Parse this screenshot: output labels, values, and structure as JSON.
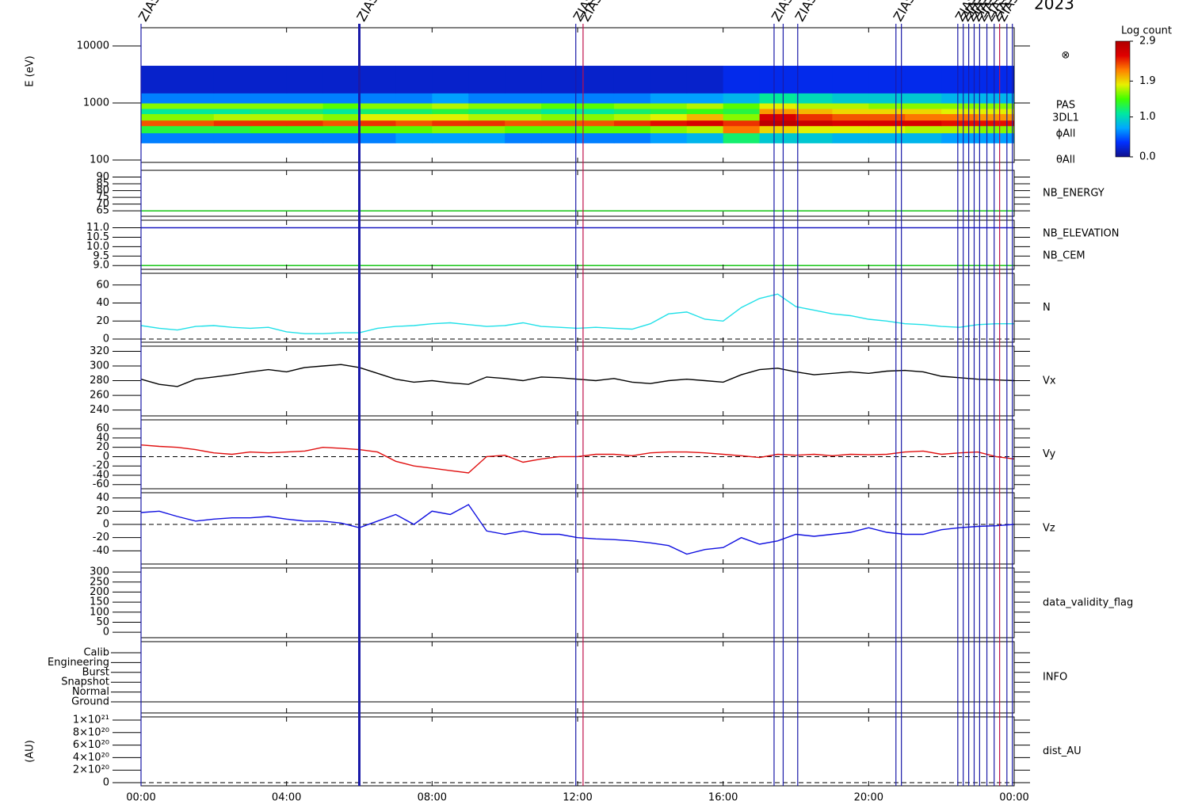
{
  "chart_data": [
    {
      "type": "heatmap",
      "ylabel": "E (eV)",
      "log": true,
      "ylim": [
        91,
        20900
      ],
      "yticks": [
        100,
        1000,
        10000
      ],
      "time_bins": [
        0,
        1,
        2,
        3,
        4,
        5,
        6,
        7,
        8,
        9,
        10,
        11,
        12,
        13,
        14,
        15,
        16,
        17,
        18,
        19,
        20,
        21,
        22,
        23,
        24
      ],
      "energy_bins": [
        200,
        300,
        400,
        500,
        650,
        800,
        1000,
        1500,
        4500
      ],
      "z": [
        [
          0.6,
          0.6,
          0.6,
          0.6,
          0.6,
          0.6,
          0.6,
          0.7,
          0.7,
          0.7,
          0.6,
          0.6,
          0.6,
          0.6,
          0.7,
          0.8,
          1.2,
          0.9,
          0.9,
          0.8,
          0.8,
          0.8,
          0.7,
          0.7
        ],
        [
          1.3,
          1.3,
          1.3,
          1.4,
          1.4,
          1.4,
          1.5,
          1.5,
          1.6,
          1.6,
          1.5,
          1.5,
          1.5,
          1.5,
          1.6,
          1.7,
          2.2,
          1.9,
          1.8,
          1.8,
          1.8,
          1.7,
          1.7,
          1.6
        ],
        [
          2.3,
          2.3,
          2.4,
          2.4,
          2.4,
          2.3,
          2.4,
          2.3,
          2.4,
          2.4,
          2.3,
          2.3,
          2.3,
          2.4,
          2.5,
          2.6,
          2.4,
          2.8,
          2.7,
          2.6,
          2.6,
          2.6,
          2.5,
          2.5
        ],
        [
          1.6,
          1.6,
          1.7,
          1.7,
          1.7,
          1.6,
          1.8,
          1.8,
          1.8,
          1.7,
          1.7,
          1.6,
          1.6,
          1.7,
          1.8,
          2.0,
          1.6,
          2.6,
          2.4,
          2.3,
          2.3,
          2.2,
          2.2,
          2.1
        ],
        [
          1.1,
          1.1,
          1.1,
          1.2,
          1.2,
          1.1,
          1.2,
          1.2,
          1.3,
          1.2,
          1.2,
          1.1,
          1.1,
          1.2,
          1.3,
          1.4,
          1.3,
          2.1,
          2.0,
          1.9,
          1.9,
          1.9,
          1.8,
          1.8
        ],
        [
          1.6,
          1.6,
          1.6,
          1.6,
          1.6,
          1.5,
          1.6,
          1.6,
          1.7,
          1.6,
          1.6,
          1.5,
          1.5,
          1.6,
          1.6,
          1.7,
          1.5,
          1.8,
          1.7,
          1.7,
          1.6,
          1.6,
          1.6,
          1.6
        ],
        [
          0.6,
          0.6,
          0.6,
          0.6,
          0.6,
          0.6,
          0.6,
          0.6,
          0.7,
          0.6,
          0.6,
          0.6,
          0.6,
          0.6,
          0.7,
          0.7,
          0.8,
          1.1,
          1.0,
          0.9,
          0.9,
          0.9,
          0.8,
          0.8
        ],
        [
          0.2,
          0.2,
          0.2,
          0.2,
          0.2,
          0.2,
          0.2,
          0.2,
          0.2,
          0.2,
          0.2,
          0.2,
          0.2,
          0.2,
          0.2,
          0.2,
          0.3,
          0.3,
          0.3,
          0.3,
          0.3,
          0.3,
          0.3,
          0.3
        ]
      ],
      "colorbar_title": "Log count",
      "clim": [
        0,
        2.9
      ],
      "cticks": [
        {
          "value": 0,
          "label": "0.0"
        },
        {
          "value": 1,
          "label": "1.0"
        },
        1.9,
        2.9
      ],
      "colorscale": [
        "#10108c",
        "#0030ff",
        "#00a8ff",
        "#00e8a0",
        "#40ff00",
        "#e8f000",
        "#ff8000",
        "#e00000",
        "#b00000"
      ],
      "labels": [
        "⊗",
        "PAS",
        "3DL1",
        "ϕAll",
        "θAll"
      ]
    },
    {
      "type": "line",
      "ylim": [
        61,
        95
      ],
      "yticks": [
        65,
        70,
        75,
        80,
        85,
        90
      ],
      "x": [
        0,
        24
      ],
      "series": [
        {
          "name": "NB_ENERGY",
          "color": "#00c000",
          "values": [
            65,
            65
          ]
        }
      ]
    },
    {
      "type": "line",
      "ylim": [
        8.8,
        11.4
      ],
      "yticks": [
        {
          "value": 9,
          "label": "9.0"
        },
        9.5,
        {
          "value": 10,
          "label": "10.0"
        },
        10.5,
        {
          "value": 11,
          "label": "11.0"
        }
      ],
      "x": [
        0,
        24
      ],
      "series": [
        {
          "name": "NB_ELEVATION",
          "color": "#00c000",
          "values": [
            9,
            9
          ]
        },
        {
          "name": "NB_CEM",
          "color": "#1818c0",
          "values": [
            11,
            11
          ]
        }
      ]
    },
    {
      "type": "line",
      "ylim": [
        -3.5,
        73
      ],
      "yticks": [
        0,
        20,
        40,
        60
      ],
      "zero_line": true,
      "x": [
        0,
        0.5,
        1,
        1.5,
        2,
        2.5,
        3,
        3.5,
        4,
        4.5,
        5,
        5.5,
        6,
        6.5,
        7,
        7.5,
        8,
        8.5,
        9,
        9.5,
        10,
        10.5,
        11,
        11.5,
        12,
        12.5,
        13,
        13.5,
        14,
        14.5,
        15,
        15.5,
        16,
        16.5,
        17,
        17.5,
        18,
        18.5,
        19,
        19.5,
        20,
        20.5,
        21,
        21.5,
        22,
        22.5,
        23,
        23.5,
        24
      ],
      "series": [
        {
          "name": "N",
          "color": "#20e0e8",
          "values": [
            15,
            12,
            10,
            14,
            15,
            13,
            12,
            13,
            8,
            6,
            6,
            7,
            7,
            12,
            14,
            15,
            17,
            18,
            16,
            14,
            15,
            18,
            14,
            13,
            12,
            13,
            12,
            11,
            17,
            28,
            30,
            22,
            20,
            35,
            45,
            50,
            36,
            32,
            28,
            26,
            22,
            20,
            17,
            16,
            14,
            13,
            16,
            17,
            17
          ]
        }
      ]
    },
    {
      "type": "line",
      "ylim": [
        232,
        327
      ],
      "yticks": [
        240,
        260,
        280,
        300,
        320
      ],
      "x": [
        0,
        0.5,
        1,
        1.5,
        2,
        2.5,
        3,
        3.5,
        4,
        4.5,
        5,
        5.5,
        6,
        6.5,
        7,
        7.5,
        8,
        8.5,
        9,
        9.5,
        10,
        10.5,
        11,
        11.5,
        12,
        12.5,
        13,
        13.5,
        14,
        14.5,
        15,
        15.5,
        16,
        16.5,
        17,
        17.5,
        18,
        18.5,
        19,
        19.5,
        20,
        20.5,
        21,
        21.5,
        22,
        22.5,
        23,
        23.5,
        24
      ],
      "series": [
        {
          "name": "Vx",
          "color": "#000000",
          "values": [
            282,
            275,
            272,
            282,
            285,
            288,
            292,
            295,
            292,
            298,
            300,
            302,
            298,
            290,
            282,
            278,
            280,
            277,
            275,
            285,
            283,
            280,
            285,
            284,
            282,
            280,
            283,
            278,
            276,
            280,
            282,
            280,
            278,
            288,
            295,
            297,
            292,
            288,
            290,
            292,
            290,
            293,
            294,
            292,
            286,
            284,
            282,
            281,
            280
          ]
        }
      ]
    },
    {
      "type": "line",
      "ylim": [
        -69,
        79
      ],
      "yticks": [
        -60,
        -40,
        -20,
        0,
        20,
        40,
        60
      ],
      "zero_line": true,
      "x": [
        0,
        0.5,
        1,
        1.5,
        2,
        2.5,
        3,
        3.5,
        4,
        4.5,
        5,
        5.5,
        6,
        6.5,
        7,
        7.5,
        8,
        8.5,
        9,
        9.5,
        10,
        10.5,
        11,
        11.5,
        12,
        12.5,
        13,
        13.5,
        14,
        14.5,
        15,
        15.5,
        16,
        16.5,
        17,
        17.5,
        18,
        18.5,
        19,
        19.5,
        20,
        20.5,
        21,
        21.5,
        22,
        22.5,
        23,
        23.5,
        24
      ],
      "series": [
        {
          "name": "Vy",
          "color": "#e01010",
          "values": [
            25,
            22,
            20,
            15,
            8,
            5,
            10,
            8,
            10,
            12,
            20,
            18,
            15,
            10,
            -10,
            -20,
            -25,
            -30,
            -35,
            0,
            3,
            -12,
            -5,
            0,
            0,
            5,
            5,
            2,
            8,
            10,
            10,
            8,
            5,
            2,
            -2,
            5,
            3,
            5,
            2,
            5,
            4,
            5,
            10,
            12,
            5,
            8,
            10,
            0,
            -5
          ]
        }
      ]
    },
    {
      "type": "line",
      "ylim": [
        -60,
        48
      ],
      "yticks": [
        -40,
        -20,
        0,
        20,
        40
      ],
      "zero_line": true,
      "x": [
        0,
        0.5,
        1,
        1.5,
        2,
        2.5,
        3,
        3.5,
        4,
        4.5,
        5,
        5.5,
        6,
        6.5,
        7,
        7.5,
        8,
        8.5,
        9,
        9.5,
        10,
        10.5,
        11,
        11.5,
        12,
        12.5,
        13,
        13.5,
        14,
        14.5,
        15,
        15.5,
        16,
        16.5,
        17,
        17.5,
        18,
        18.5,
        19,
        19.5,
        20,
        20.5,
        21,
        21.5,
        22,
        22.5,
        23,
        23.5,
        24
      ],
      "series": [
        {
          "name": "Vz",
          "color": "#1010e0",
          "values": [
            18,
            20,
            12,
            5,
            8,
            10,
            10,
            12,
            8,
            5,
            5,
            2,
            -5,
            5,
            15,
            0,
            20,
            15,
            30,
            -10,
            -15,
            -10,
            -15,
            -15,
            -20,
            -22,
            -23,
            -25,
            -28,
            -32,
            -45,
            -38,
            -35,
            -20,
            -30,
            -25,
            -15,
            -18,
            -15,
            -12,
            -5,
            -12,
            -15,
            -15,
            -8,
            -5,
            -3,
            -2,
            0
          ]
        }
      ]
    },
    {
      "type": "line",
      "title": "data_validity_flag",
      "ylim": [
        -27,
        320
      ],
      "yticks": [
        0,
        50,
        100,
        150,
        200,
        250,
        300
      ],
      "series": []
    },
    {
      "type": "category",
      "title": "INFO",
      "categories": [
        "Calib",
        "Engineering",
        "Burst",
        "Snapshot",
        "Normal",
        "Ground"
      ]
    },
    {
      "type": "line",
      "title": "dist_AU",
      "ylabel": "(AU)",
      "ylim": [
        -5e+19,
        1.05e+21
      ],
      "zero_line": true,
      "series": [],
      "yticks": [
        0,
        {
          "value": 2e+20,
          "label": "2×10²⁰"
        },
        {
          "value": 4e+20,
          "label": "4×10²⁰"
        },
        {
          "value": 6e+20,
          "label": "6×10²⁰"
        },
        {
          "value": 8e+20,
          "label": "8×10²⁰"
        },
        {
          "value": 1e+21,
          "label": "1×10²¹"
        }
      ],
      "xlim": [
        0,
        24
      ],
      "xticks": [
        {
          "value": 0,
          "label": "00:00"
        },
        {
          "value": 4,
          "label": "04:00"
        },
        {
          "value": 8,
          "label": "08:00"
        },
        {
          "value": 12,
          "label": "12:00"
        },
        {
          "value": 16,
          "label": "16:00"
        },
        {
          "value": 20,
          "label": "20:00"
        },
        {
          "value": 24,
          "label": "00:00"
        }
      ]
    }
  ],
  "events": {
    "x": [
      0,
      6,
      11.95,
      12.15,
      17.4,
      17.65,
      18.05,
      20.75,
      20.9,
      22.45,
      22.6,
      22.75,
      22.9,
      23.05,
      23.25,
      23.45,
      23.6,
      23.8,
      23.95
    ],
    "colors": [
      "#1a1aa8",
      "#1a1aa8",
      "#1a1aa8",
      "#c0104a",
      "#1a1aa8",
      "#1a1aa8",
      "#1a1aa8",
      "#1a1aa8",
      "#1a1aa8",
      "#1a1aa8",
      "#1a1aa8",
      "#1a1aa8",
      "#1a1aa8",
      "#1a1aa8",
      "#1a1aa8",
      "#1a1aa8",
      "#c0104a",
      "#1a1aa8",
      "#1a1aa8"
    ],
    "labels": [
      "ZIAS",
      "ZIAS",
      "ZIAS",
      "ZIAS",
      "ZIAS",
      null,
      "ZIAS",
      "ZIAS",
      null,
      "ZIAS",
      "ZIAS",
      "ZIAS",
      "ZIAS",
      "ZIAS",
      "ZIAS",
      "ZIAS",
      "ZIAS",
      null,
      null
    ]
  },
  "year": "2023"
}
